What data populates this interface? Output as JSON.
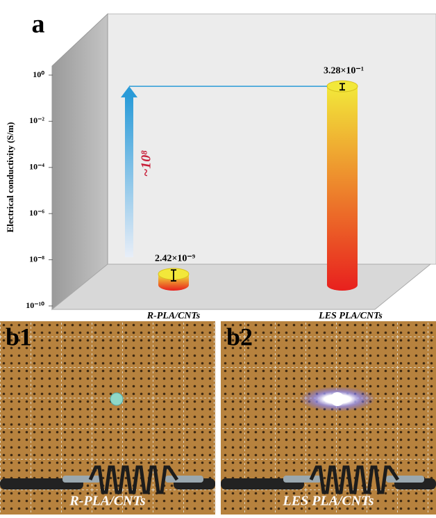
{
  "chart_data": {
    "type": "bar",
    "panel_label": "a",
    "y_label": "Electrical conductivity (S/m)",
    "categories": [
      "R-PLA/CNTs",
      "LES PLA/CNTs"
    ],
    "values": [
      2.42e-09,
      0.328
    ],
    "value_labels": [
      "2.42×10⁻⁹",
      "3.28×10⁻¹"
    ],
    "errors": [
      1.2e-09,
      0.1
    ],
    "log_scale": true,
    "ylim": [
      1e-10,
      1
    ],
    "yticks": [
      {
        "value": 1e-10,
        "label": "10⁻¹⁰"
      },
      {
        "value": 1e-08,
        "label": "10⁻⁸"
      },
      {
        "value": 1e-06,
        "label": "10⁻⁶"
      },
      {
        "value": 0.0001,
        "label": "10⁻⁴"
      },
      {
        "value": 0.01,
        "label": "10⁻²"
      },
      {
        "value": 1,
        "label": "10⁰"
      }
    ],
    "annotation": "~10⁸",
    "colors": {
      "bar_bottom": "#e8201e",
      "bar_top": "#f2e83a",
      "arrow": "#2a9bd8",
      "annotation": "#c8203a"
    }
  },
  "photos": [
    {
      "label": "b1",
      "caption": "R-PLA/CNTs"
    },
    {
      "label": "b2",
      "caption": "LES PLA/CNTs"
    }
  ]
}
